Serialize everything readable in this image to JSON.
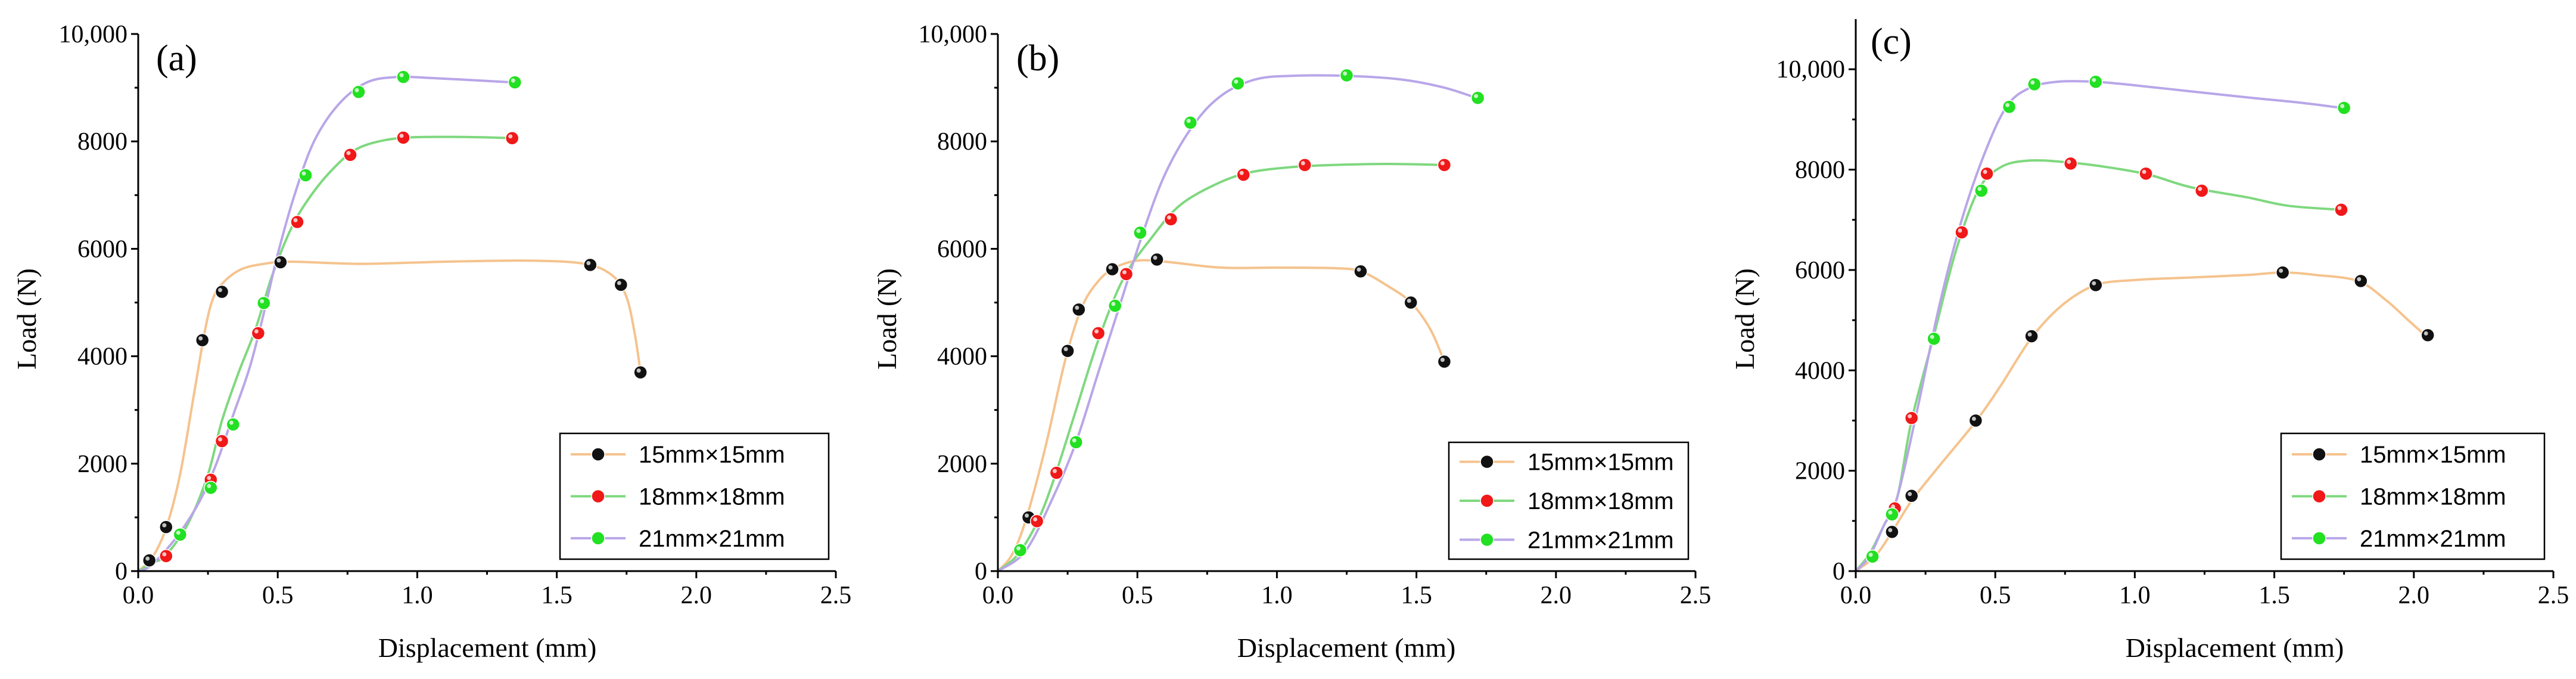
{
  "colors": {
    "curve_15": "#f5c38e",
    "curve_18": "#7fd87f",
    "curve_21": "#b8a6e8",
    "marker_15": "#111111",
    "marker_18": "#f01818",
    "marker_21": "#22e022"
  },
  "chart_data": [
    {
      "type": "line",
      "panel": "(a)",
      "xlabel": "Displacement (mm)",
      "ylabel": "Load (N)",
      "xlim": [
        0,
        2.5
      ],
      "ylim": [
        0,
        10000
      ],
      "xticks": [
        0.0,
        0.5,
        1.0,
        1.5,
        2.0,
        2.5
      ],
      "xtick_labels": [
        "0.0",
        "0.5",
        "1.0",
        "1.5",
        "2.0",
        "2.5"
      ],
      "yticks": [
        0,
        2000,
        4000,
        6000,
        8000,
        10000
      ],
      "ytick_labels": [
        "0",
        "2000",
        "4000",
        "6000",
        "8000",
        "10,000"
      ],
      "legend": [
        "15mm×15mm",
        "18mm×18mm",
        "21mm×21mm"
      ],
      "legend_position": "bottom-right",
      "series": [
        {
          "name": "15mm×15mm",
          "curve": [
            [
              0,
              0
            ],
            [
              0.05,
              250
            ],
            [
              0.1,
              800
            ],
            [
              0.15,
              1800
            ],
            [
              0.2,
              3300
            ],
            [
              0.24,
              4500
            ],
            [
              0.27,
              5100
            ],
            [
              0.31,
              5400
            ],
            [
              0.37,
              5620
            ],
            [
              0.45,
              5720
            ],
            [
              0.55,
              5760
            ],
            [
              0.8,
              5720
            ],
            [
              1.1,
              5760
            ],
            [
              1.4,
              5780
            ],
            [
              1.6,
              5720
            ],
            [
              1.7,
              5500
            ],
            [
              1.75,
              5100
            ],
            [
              1.78,
              4400
            ],
            [
              1.8,
              3700
            ]
          ],
          "markers": [
            [
              0.04,
              200
            ],
            [
              0.1,
              820
            ],
            [
              0.23,
              4300
            ],
            [
              0.3,
              5200
            ],
            [
              0.51,
              5750
            ],
            [
              1.62,
              5700
            ],
            [
              1.73,
              5330
            ],
            [
              1.8,
              3700
            ]
          ]
        },
        {
          "name": "18mm×18mm",
          "curve": [
            [
              0,
              0
            ],
            [
              0.05,
              150
            ],
            [
              0.1,
              300
            ],
            [
              0.18,
              900
            ],
            [
              0.25,
              1800
            ],
            [
              0.3,
              2800
            ],
            [
              0.36,
              3700
            ],
            [
              0.42,
              4500
            ],
            [
              0.48,
              5500
            ],
            [
              0.55,
              6400
            ],
            [
              0.62,
              7000
            ],
            [
              0.7,
              7500
            ],
            [
              0.78,
              7850
            ],
            [
              0.88,
              8020
            ],
            [
              1.0,
              8080
            ],
            [
              1.2,
              8080
            ],
            [
              1.34,
              8060
            ]
          ],
          "markers": [
            [
              0.1,
              280
            ],
            [
              0.26,
              1700
            ],
            [
              0.3,
              2420
            ],
            [
              0.43,
              4430
            ],
            [
              0.57,
              6500
            ],
            [
              0.76,
              7750
            ],
            [
              0.95,
              8070
            ],
            [
              1.34,
              8060
            ]
          ]
        },
        {
          "name": "21mm×21mm",
          "curve": [
            [
              0,
              0
            ],
            [
              0.05,
              120
            ],
            [
              0.14,
              650
            ],
            [
              0.22,
              1300
            ],
            [
              0.28,
              2000
            ],
            [
              0.34,
              2900
            ],
            [
              0.4,
              3800
            ],
            [
              0.45,
              4800
            ],
            [
              0.5,
              5900
            ],
            [
              0.56,
              7000
            ],
            [
              0.63,
              8000
            ],
            [
              0.72,
              8700
            ],
            [
              0.82,
              9100
            ],
            [
              0.93,
              9200
            ],
            [
              1.05,
              9180
            ],
            [
              1.2,
              9140
            ],
            [
              1.34,
              9100
            ]
          ],
          "markers": [
            [
              0.15,
              680
            ],
            [
              0.26,
              1550
            ],
            [
              0.34,
              2730
            ],
            [
              0.45,
              4990
            ],
            [
              0.6,
              7370
            ],
            [
              0.79,
              8920
            ],
            [
              0.95,
              9200
            ],
            [
              1.35,
              9100
            ]
          ]
        }
      ]
    },
    {
      "type": "line",
      "panel": "(b)",
      "xlabel": "Displacement (mm)",
      "ylabel": "Load (N)",
      "xlim": [
        0,
        2.5
      ],
      "ylim": [
        0,
        10000
      ],
      "xticks": [
        0.0,
        0.5,
        1.0,
        1.5,
        2.0,
        2.5
      ],
      "xtick_labels": [
        "0.0",
        "0.5",
        "1.0",
        "1.5",
        "2.0",
        "2.5"
      ],
      "yticks": [
        0,
        2000,
        4000,
        6000,
        8000,
        10000
      ],
      "ytick_labels": [
        "0",
        "2000",
        "4000",
        "6000",
        "8000",
        "10,000"
      ],
      "legend": [
        "15mm×15mm",
        "18mm×18mm",
        "21mm×21mm"
      ],
      "legend_position": "bottom-right",
      "series": [
        {
          "name": "15mm×15mm",
          "curve": [
            [
              0,
              0
            ],
            [
              0.05,
              300
            ],
            [
              0.1,
              950
            ],
            [
              0.17,
              2300
            ],
            [
              0.24,
              3900
            ],
            [
              0.3,
              4900
            ],
            [
              0.36,
              5400
            ],
            [
              0.42,
              5650
            ],
            [
              0.5,
              5780
            ],
            [
              0.6,
              5760
            ],
            [
              0.8,
              5650
            ],
            [
              1.0,
              5650
            ],
            [
              1.2,
              5640
            ],
            [
              1.3,
              5580
            ],
            [
              1.4,
              5300
            ],
            [
              1.48,
              5000
            ],
            [
              1.55,
              4500
            ],
            [
              1.6,
              3900
            ]
          ],
          "markers": [
            [
              0.11,
              1000
            ],
            [
              0.25,
              4100
            ],
            [
              0.29,
              4870
            ],
            [
              0.41,
              5620
            ],
            [
              0.57,
              5800
            ],
            [
              1.3,
              5580
            ],
            [
              1.48,
              5000
            ],
            [
              1.6,
              3900
            ]
          ]
        },
        {
          "name": "18mm×18mm",
          "curve": [
            [
              0,
              0
            ],
            [
              0.07,
              300
            ],
            [
              0.14,
              900
            ],
            [
              0.2,
              1700
            ],
            [
              0.28,
              3000
            ],
            [
              0.36,
              4300
            ],
            [
              0.45,
              5450
            ],
            [
              0.55,
              6200
            ],
            [
              0.65,
              6800
            ],
            [
              0.78,
              7200
            ],
            [
              0.9,
              7420
            ],
            [
              1.05,
              7520
            ],
            [
              1.2,
              7560
            ],
            [
              1.4,
              7580
            ],
            [
              1.6,
              7560
            ]
          ],
          "markers": [
            [
              0.14,
              930
            ],
            [
              0.21,
              1830
            ],
            [
              0.36,
              4430
            ],
            [
              0.46,
              5530
            ],
            [
              0.62,
              6550
            ],
            [
              0.88,
              7380
            ],
            [
              1.1,
              7560
            ],
            [
              1.6,
              7560
            ]
          ]
        },
        {
          "name": "21mm×21mm",
          "curve": [
            [
              0,
              0
            ],
            [
              0.1,
              380
            ],
            [
              0.2,
              1400
            ],
            [
              0.28,
              2400
            ],
            [
              0.36,
              3700
            ],
            [
              0.44,
              5000
            ],
            [
              0.52,
              6300
            ],
            [
              0.6,
              7400
            ],
            [
              0.7,
              8300
            ],
            [
              0.8,
              8850
            ],
            [
              0.92,
              9150
            ],
            [
              1.05,
              9220
            ],
            [
              1.25,
              9220
            ],
            [
              1.45,
              9150
            ],
            [
              1.6,
              9000
            ],
            [
              1.72,
              8800
            ]
          ],
          "markers": [
            [
              0.08,
              390
            ],
            [
              0.28,
              2400
            ],
            [
              0.42,
              4940
            ],
            [
              0.51,
              6300
            ],
            [
              0.69,
              8350
            ],
            [
              0.86,
              9080
            ],
            [
              1.25,
              9230
            ],
            [
              1.72,
              8810
            ]
          ]
        }
      ]
    },
    {
      "type": "line",
      "panel": "(c)",
      "xlabel": "Displacement (mm)",
      "ylabel": "Load (N)",
      "xlim": [
        0,
        2.5
      ],
      "ylim": [
        0,
        11000
      ],
      "xticks": [
        0.0,
        0.5,
        1.0,
        1.5,
        2.0,
        2.5
      ],
      "xtick_labels": [
        "0.0",
        "0.5",
        "1.0",
        "1.5",
        "2.0",
        "2.5"
      ],
      "yticks": [
        0,
        2000,
        4000,
        6000,
        8000,
        10000
      ],
      "ytick_labels": [
        "0",
        "2000",
        "4000",
        "6000",
        "8000",
        "10,000"
      ],
      "legend": [
        "15mm×15mm",
        "18mm×18mm",
        "21mm×21mm"
      ],
      "legend_position": "bottom-right",
      "series": [
        {
          "name": "15mm×15mm",
          "curve": [
            [
              0,
              0
            ],
            [
              0.07,
              300
            ],
            [
              0.13,
              780
            ],
            [
              0.2,
              1400
            ],
            [
              0.3,
              2100
            ],
            [
              0.43,
              2980
            ],
            [
              0.52,
              3700
            ],
            [
              0.63,
              4650
            ],
            [
              0.74,
              5300
            ],
            [
              0.86,
              5700
            ],
            [
              1.0,
              5800
            ],
            [
              1.2,
              5850
            ],
            [
              1.4,
              5900
            ],
            [
              1.53,
              5950
            ],
            [
              1.65,
              5900
            ],
            [
              1.8,
              5780
            ],
            [
              1.9,
              5400
            ],
            [
              1.98,
              5000
            ],
            [
              2.04,
              4700
            ]
          ],
          "markers": [
            [
              0.13,
              780
            ],
            [
              0.2,
              1500
            ],
            [
              0.43,
              3000
            ],
            [
              0.63,
              4680
            ],
            [
              0.86,
              5700
            ],
            [
              1.53,
              5950
            ],
            [
              1.81,
              5780
            ],
            [
              2.05,
              4700
            ]
          ]
        },
        {
          "name": "18mm×18mm",
          "curve": [
            [
              0,
              0
            ],
            [
              0.05,
              350
            ],
            [
              0.1,
              900
            ],
            [
              0.15,
              1500
            ],
            [
              0.2,
              3000
            ],
            [
              0.28,
              4700
            ],
            [
              0.36,
              6400
            ],
            [
              0.44,
              7600
            ],
            [
              0.52,
              8050
            ],
            [
              0.62,
              8180
            ],
            [
              0.75,
              8150
            ],
            [
              0.9,
              8050
            ],
            [
              1.05,
              7900
            ],
            [
              1.2,
              7650
            ],
            [
              1.4,
              7450
            ],
            [
              1.55,
              7280
            ],
            [
              1.74,
              7200
            ]
          ],
          "markers": [
            [
              0.14,
              1250
            ],
            [
              0.2,
              3050
            ],
            [
              0.38,
              6750
            ],
            [
              0.47,
              7920
            ],
            [
              0.77,
              8120
            ],
            [
              1.04,
              7920
            ],
            [
              1.24,
              7580
            ],
            [
              1.74,
              7200
            ]
          ]
        },
        {
          "name": "21mm×21mm",
          "curve": [
            [
              0,
              0
            ],
            [
              0.05,
              300
            ],
            [
              0.1,
              900
            ],
            [
              0.15,
              1500
            ],
            [
              0.22,
              3200
            ],
            [
              0.3,
              5300
            ],
            [
              0.38,
              7000
            ],
            [
              0.46,
              8300
            ],
            [
              0.54,
              9250
            ],
            [
              0.62,
              9620
            ],
            [
              0.72,
              9750
            ],
            [
              0.86,
              9750
            ],
            [
              1.0,
              9680
            ],
            [
              1.2,
              9560
            ],
            [
              1.4,
              9440
            ],
            [
              1.6,
              9330
            ],
            [
              1.74,
              9230
            ]
          ],
          "markers": [
            [
              0.06,
              290
            ],
            [
              0.13,
              1130
            ],
            [
              0.28,
              4630
            ],
            [
              0.45,
              7580
            ],
            [
              0.55,
              9250
            ],
            [
              0.64,
              9700
            ],
            [
              0.86,
              9750
            ],
            [
              1.75,
              9230
            ]
          ]
        }
      ]
    }
  ]
}
